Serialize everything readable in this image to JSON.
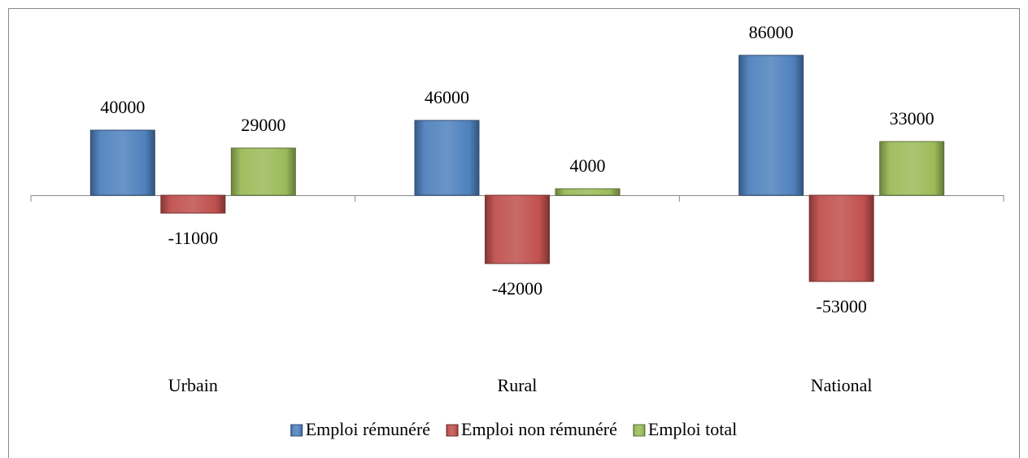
{
  "chart_data": {
    "type": "bar",
    "categories": [
      "Urbain",
      "Rural",
      "National"
    ],
    "series": [
      {
        "name": "Emploi rémunéré",
        "color": "#4f81bd",
        "values": [
          40000,
          46000,
          86000
        ]
      },
      {
        "name": "Emploi non rémunéré",
        "color": "#c0504d",
        "values": [
          -11000,
          -42000,
          -53000
        ]
      },
      {
        "name": "Emploi total",
        "color": "#9bbb59",
        "values": [
          29000,
          4000,
          33000
        ]
      }
    ]
  }
}
